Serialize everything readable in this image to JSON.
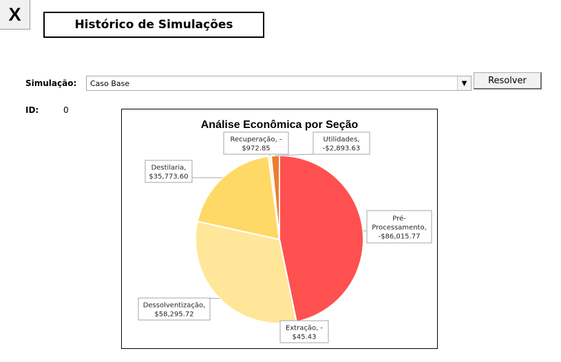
{
  "close_button": {
    "label": "X"
  },
  "header": {
    "title": "Histórico de Simulações"
  },
  "simulation": {
    "label": "Simulação:",
    "selected": "Caso Base",
    "resolve_label": "Resolver"
  },
  "id_field": {
    "label": "ID:",
    "value": "0"
  },
  "chart_data": {
    "type": "pie",
    "title": "Análise Econômica por Seção",
    "slices": [
      {
        "category": "Pré-Processamento",
        "value": -86015.77,
        "label_lines": [
          "Pré-",
          "Processamento,",
          "-$86,015.77"
        ],
        "color": "#ff5050"
      },
      {
        "category": "Extração",
        "value": -45.43,
        "label_lines": [
          "Extração, -",
          "$45.43"
        ],
        "color": "#ff6b55"
      },
      {
        "category": "Dessolventização",
        "value": 58295.72,
        "label_lines": [
          "Dessolventização,",
          "$58,295.72"
        ],
        "color": "#ffe699"
      },
      {
        "category": "Destilaria",
        "value": 35773.6,
        "label_lines": [
          "Destilaria,",
          "$35,773.60"
        ],
        "color": "#ffd966"
      },
      {
        "category": "Recuperação",
        "value": -972.85,
        "label_lines": [
          "Recuperação, -",
          "$972.85"
        ],
        "color": "#fff2cc"
      },
      {
        "category": "Utilidades",
        "value": -2893.63,
        "label_lines": [
          "Utilidades,",
          "-$2,893.63"
        ],
        "color": "#ed7d31"
      }
    ],
    "legend": "none"
  }
}
